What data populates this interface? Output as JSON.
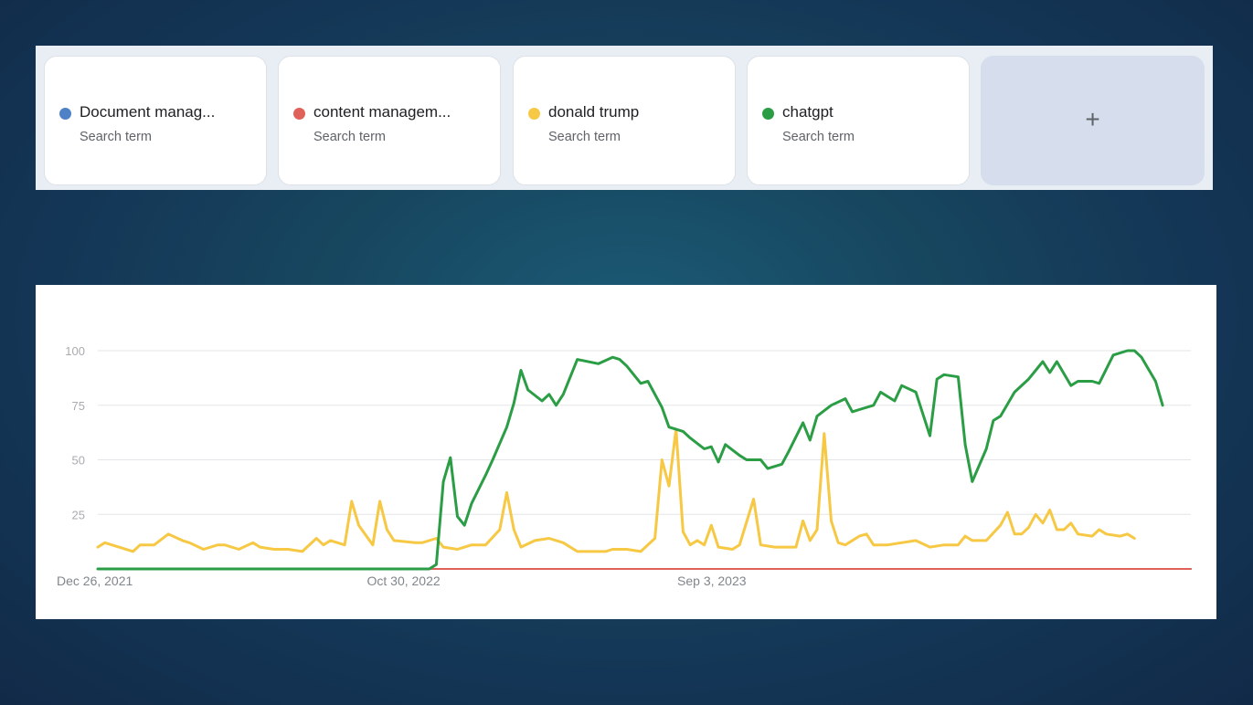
{
  "terms": [
    {
      "label": "Document manag...",
      "sublabel": "Search term",
      "color": "#4f81c7",
      "icon": "blue-dot"
    },
    {
      "label": "content managem...",
      "sublabel": "Search term",
      "color": "#e0605a",
      "icon": "red-dot"
    },
    {
      "label": "donald trump",
      "sublabel": "Search term",
      "color": "#f6c844",
      "icon": "yellow-dot"
    },
    {
      "label": "chatgpt",
      "sublabel": "Search term",
      "color": "#2a9d45",
      "icon": "green-dot"
    }
  ],
  "add_button": {
    "label": "+",
    "icon": "plus-icon"
  },
  "chart_data": {
    "type": "line",
    "title": "",
    "xlabel": "",
    "ylabel": "",
    "ylim": [
      0,
      100
    ],
    "yticks": [
      "100",
      "75",
      "50",
      "25"
    ],
    "xtick_labels": [
      "Dec 26, 2021",
      "Oct 30, 2022",
      "Sep 3, 2023"
    ],
    "grid": true,
    "x_start": "2021-12-26",
    "x_end": "2024-12-15",
    "series": [
      {
        "name": "Document manag...",
        "color": "#4f81c7",
        "stroke_width": 2,
        "points": [
          [
            "2021-12-26",
            0
          ],
          [
            "2024-12-15",
            0
          ]
        ]
      },
      {
        "name": "content managem...",
        "color": "#e0605a",
        "stroke_width": 2,
        "points": [
          [
            "2021-12-26",
            0
          ],
          [
            "2024-12-15",
            0
          ]
        ]
      },
      {
        "name": "donald trump",
        "color": "#f6c844",
        "stroke_width": 3,
        "points": [
          [
            "2021-12-26",
            10
          ],
          [
            "2022-01-02",
            12
          ],
          [
            "2022-01-16",
            10
          ],
          [
            "2022-01-30",
            8
          ],
          [
            "2022-02-06",
            11
          ],
          [
            "2022-02-20",
            11
          ],
          [
            "2022-03-06",
            16
          ],
          [
            "2022-03-20",
            13
          ],
          [
            "2022-03-27",
            12
          ],
          [
            "2022-04-10",
            9
          ],
          [
            "2022-04-24",
            11
          ],
          [
            "2022-05-01",
            11
          ],
          [
            "2022-05-15",
            9
          ],
          [
            "2022-05-29",
            12
          ],
          [
            "2022-06-05",
            10
          ],
          [
            "2022-06-19",
            9
          ],
          [
            "2022-07-03",
            9
          ],
          [
            "2022-07-17",
            8
          ],
          [
            "2022-07-31",
            14
          ],
          [
            "2022-08-07",
            11
          ],
          [
            "2022-08-14",
            13
          ],
          [
            "2022-08-28",
            11
          ],
          [
            "2022-09-04",
            31
          ],
          [
            "2022-09-11",
            20
          ],
          [
            "2022-09-25",
            11
          ],
          [
            "2022-10-02",
            31
          ],
          [
            "2022-10-09",
            18
          ],
          [
            "2022-10-16",
            13
          ],
          [
            "2022-11-06",
            12
          ],
          [
            "2022-11-13",
            12
          ],
          [
            "2022-11-27",
            14
          ],
          [
            "2022-12-04",
            10
          ],
          [
            "2022-12-18",
            9
          ],
          [
            "2023-01-01",
            11
          ],
          [
            "2023-01-15",
            11
          ],
          [
            "2023-01-29",
            18
          ],
          [
            "2023-02-05",
            35
          ],
          [
            "2023-02-12",
            18
          ],
          [
            "2023-02-19",
            10
          ],
          [
            "2023-03-05",
            13
          ],
          [
            "2023-03-19",
            14
          ],
          [
            "2023-04-02",
            12
          ],
          [
            "2023-04-16",
            8
          ],
          [
            "2023-04-23",
            8
          ],
          [
            "2023-05-14",
            8
          ],
          [
            "2023-05-21",
            9
          ],
          [
            "2023-06-04",
            9
          ],
          [
            "2023-06-18",
            8
          ],
          [
            "2023-07-02",
            14
          ],
          [
            "2023-07-09",
            50
          ],
          [
            "2023-07-16",
            38
          ],
          [
            "2023-07-23",
            64
          ],
          [
            "2023-07-30",
            17
          ],
          [
            "2023-08-06",
            11
          ],
          [
            "2023-08-13",
            13
          ],
          [
            "2023-08-20",
            11
          ],
          [
            "2023-08-27",
            20
          ],
          [
            "2023-09-03",
            10
          ],
          [
            "2023-09-17",
            9
          ],
          [
            "2023-09-24",
            11
          ],
          [
            "2023-10-08",
            32
          ],
          [
            "2023-10-15",
            11
          ],
          [
            "2023-10-29",
            10
          ],
          [
            "2023-11-05",
            10
          ],
          [
            "2023-11-19",
            10
          ],
          [
            "2023-11-26",
            22
          ],
          [
            "2023-12-03",
            13
          ],
          [
            "2023-12-10",
            18
          ],
          [
            "2023-12-17",
            62
          ],
          [
            "2023-12-24",
            22
          ],
          [
            "2023-12-31",
            12
          ],
          [
            "2024-01-07",
            11
          ],
          [
            "2024-01-21",
            15
          ],
          [
            "2024-01-28",
            16
          ],
          [
            "2024-02-04",
            11
          ],
          [
            "2024-02-18",
            11
          ],
          [
            "2024-03-03",
            12
          ],
          [
            "2024-03-17",
            13
          ],
          [
            "2024-03-31",
            10
          ],
          [
            "2024-04-14",
            11
          ],
          [
            "2024-04-28",
            11
          ],
          [
            "2024-05-05",
            15
          ],
          [
            "2024-05-12",
            13
          ],
          [
            "2024-05-26",
            13
          ],
          [
            "2024-06-09",
            20
          ],
          [
            "2024-06-16",
            26
          ],
          [
            "2024-06-23",
            16
          ],
          [
            "2024-06-30",
            16
          ],
          [
            "2024-07-07",
            19
          ],
          [
            "2024-07-14",
            25
          ],
          [
            "2024-07-21",
            21
          ],
          [
            "2024-07-28",
            27
          ],
          [
            "2024-08-04",
            18
          ],
          [
            "2024-08-11",
            18
          ],
          [
            "2024-08-18",
            21
          ],
          [
            "2024-08-25",
            16
          ],
          [
            "2024-09-08",
            15
          ],
          [
            "2024-09-15",
            18
          ],
          [
            "2024-09-22",
            16
          ],
          [
            "2024-10-06",
            15
          ],
          [
            "2024-10-13",
            16
          ],
          [
            "2024-10-20",
            14
          ]
        ]
      },
      {
        "name": "chatgpt",
        "color": "#2a9d45",
        "stroke_width": 3,
        "points": [
          [
            "2021-12-26",
            0
          ],
          [
            "2022-11-20",
            0
          ],
          [
            "2022-11-27",
            2
          ],
          [
            "2022-12-04",
            40
          ],
          [
            "2022-12-11",
            51
          ],
          [
            "2022-12-18",
            24
          ],
          [
            "2022-12-25",
            20
          ],
          [
            "2023-01-01",
            30
          ],
          [
            "2023-01-15",
            43
          ],
          [
            "2023-01-22",
            50
          ],
          [
            "2023-02-05",
            65
          ],
          [
            "2023-02-12",
            76
          ],
          [
            "2023-02-19",
            91
          ],
          [
            "2023-02-26",
            82
          ],
          [
            "2023-03-12",
            77
          ],
          [
            "2023-03-19",
            80
          ],
          [
            "2023-03-26",
            75
          ],
          [
            "2023-04-02",
            80
          ],
          [
            "2023-04-16",
            96
          ],
          [
            "2023-05-07",
            94
          ],
          [
            "2023-05-21",
            97
          ],
          [
            "2023-05-28",
            96
          ],
          [
            "2023-06-04",
            93
          ],
          [
            "2023-06-18",
            85
          ],
          [
            "2023-06-25",
            86
          ],
          [
            "2023-07-09",
            74
          ],
          [
            "2023-07-16",
            65
          ],
          [
            "2023-07-30",
            63
          ],
          [
            "2023-08-06",
            60
          ],
          [
            "2023-08-20",
            55
          ],
          [
            "2023-08-27",
            56
          ],
          [
            "2023-09-03",
            49
          ],
          [
            "2023-09-10",
            57
          ],
          [
            "2023-09-24",
            52
          ],
          [
            "2023-10-01",
            50
          ],
          [
            "2023-10-15",
            50
          ],
          [
            "2023-10-22",
            46
          ],
          [
            "2023-11-05",
            48
          ],
          [
            "2023-11-12",
            54
          ],
          [
            "2023-11-26",
            67
          ],
          [
            "2023-12-03",
            59
          ],
          [
            "2023-12-10",
            70
          ],
          [
            "2023-12-24",
            75
          ],
          [
            "2024-01-07",
            78
          ],
          [
            "2024-01-14",
            72
          ],
          [
            "2024-01-21",
            73
          ],
          [
            "2024-02-04",
            75
          ],
          [
            "2024-02-11",
            81
          ],
          [
            "2024-02-25",
            77
          ],
          [
            "2024-03-03",
            84
          ],
          [
            "2024-03-17",
            81
          ],
          [
            "2024-03-31",
            61
          ],
          [
            "2024-04-07",
            87
          ],
          [
            "2024-04-14",
            89
          ],
          [
            "2024-04-28",
            88
          ],
          [
            "2024-05-05",
            57
          ],
          [
            "2024-05-12",
            40
          ],
          [
            "2024-05-26",
            55
          ],
          [
            "2024-06-02",
            68
          ],
          [
            "2024-06-09",
            70
          ],
          [
            "2024-06-23",
            81
          ],
          [
            "2024-07-07",
            87
          ],
          [
            "2024-07-21",
            95
          ],
          [
            "2024-07-28",
            90
          ],
          [
            "2024-08-04",
            95
          ],
          [
            "2024-08-18",
            84
          ],
          [
            "2024-08-25",
            86
          ],
          [
            "2024-09-08",
            86
          ],
          [
            "2024-09-15",
            85
          ],
          [
            "2024-09-29",
            98
          ],
          [
            "2024-10-13",
            100
          ],
          [
            "2024-10-20",
            100
          ],
          [
            "2024-10-27",
            97
          ],
          [
            "2024-11-10",
            86
          ],
          [
            "2024-11-17",
            75
          ]
        ]
      }
    ]
  }
}
